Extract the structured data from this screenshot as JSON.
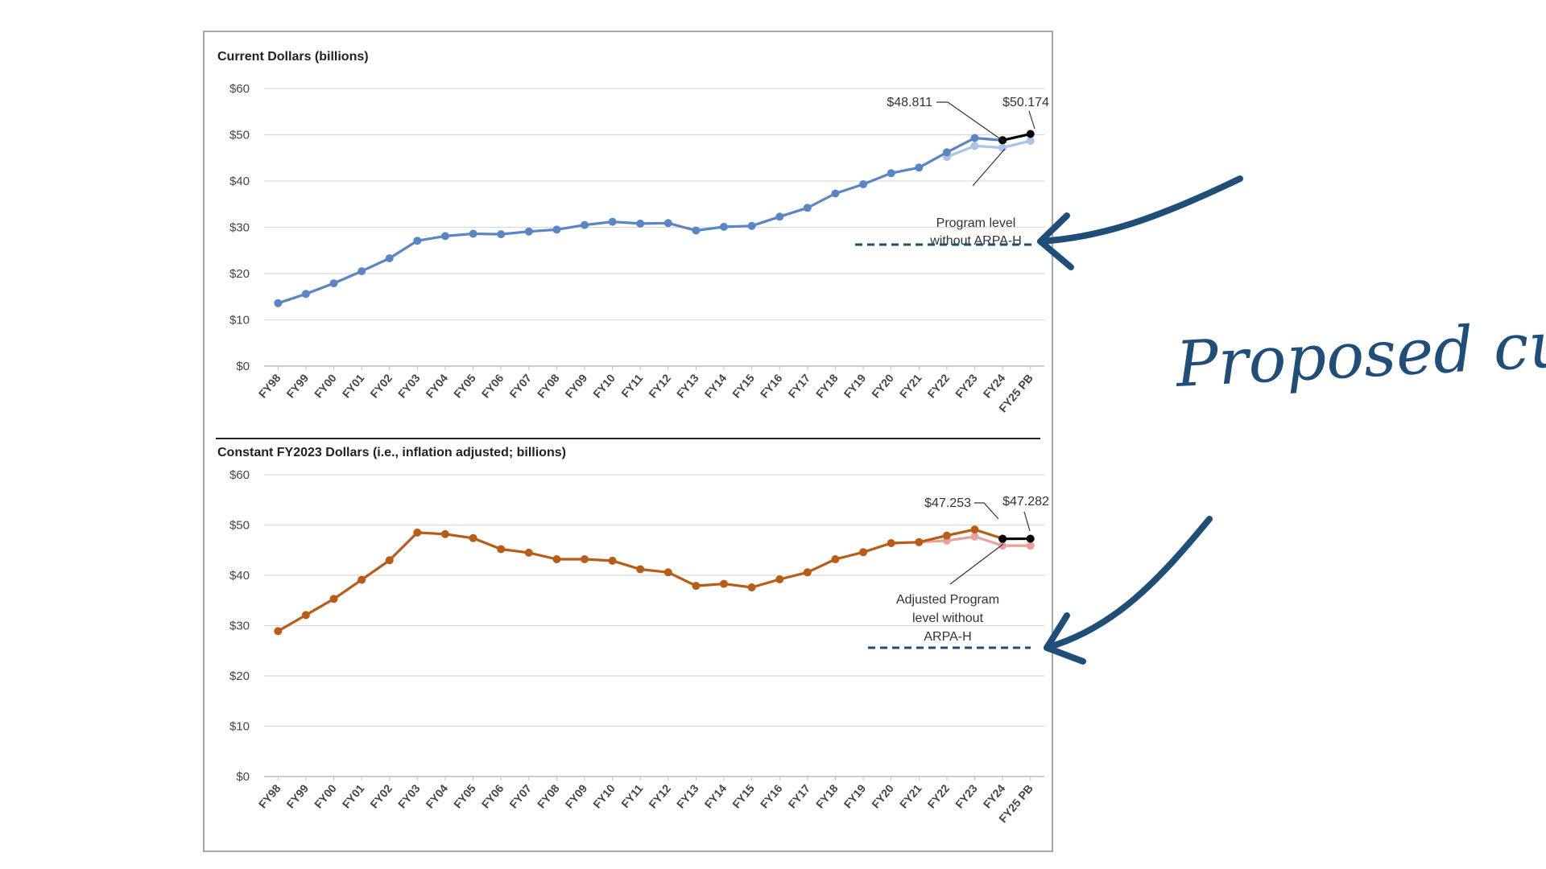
{
  "chart_data": [
    {
      "type": "line",
      "title": "Current Dollars (billions)",
      "yticks": [
        "$0",
        "$10",
        "$20",
        "$30",
        "$40",
        "$50",
        "$60"
      ],
      "ylim": [
        0,
        60
      ],
      "categories": [
        "FY98",
        "FY99",
        "FY00",
        "FY01",
        "FY02",
        "FY03",
        "FY04",
        "FY05",
        "FY06",
        "FY07",
        "FY08",
        "FY09",
        "FY10",
        "FY11",
        "FY12",
        "FY13",
        "FY14",
        "FY15",
        "FY16",
        "FY17",
        "FY18",
        "FY19",
        "FY20",
        "FY21",
        "FY22",
        "FY23",
        "FY24",
        "FY25 PB"
      ],
      "series": [
        {
          "color": "#5b86c5",
          "values": [
            13.6,
            15.6,
            17.9,
            20.5,
            23.3,
            27.1,
            28.1,
            28.6,
            28.5,
            29.1,
            29.5,
            30.5,
            31.2,
            30.8,
            30.9,
            29.3,
            30.1,
            30.3,
            32.3,
            34.2,
            37.3,
            39.3,
            41.7,
            42.9,
            46.2,
            49.3,
            48.8,
            null
          ]
        },
        {
          "color": "#a9c4e6",
          "values": [
            null,
            null,
            null,
            null,
            null,
            null,
            null,
            null,
            null,
            null,
            null,
            null,
            null,
            null,
            null,
            null,
            null,
            null,
            null,
            null,
            null,
            null,
            null,
            null,
            45.2,
            47.6,
            47.2,
            48.7
          ]
        },
        {
          "color": "#000000",
          "values": [
            null,
            null,
            null,
            null,
            null,
            null,
            null,
            null,
            null,
            null,
            null,
            null,
            null,
            null,
            null,
            null,
            null,
            null,
            null,
            null,
            null,
            null,
            null,
            null,
            null,
            null,
            48.811,
            50.174
          ]
        }
      ],
      "annotations": [
        "$48.811",
        "$50.174",
        "Program level",
        "without ARPA-H"
      ]
    },
    {
      "type": "line",
      "title": "Constant FY2023 Dollars (i.e., inflation adjusted; billions)",
      "yticks": [
        "$0",
        "$10",
        "$20",
        "$30",
        "$40",
        "$50",
        "$60"
      ],
      "ylim": [
        0,
        60
      ],
      "categories": [
        "FY98",
        "FY99",
        "FY00",
        "FY01",
        "FY02",
        "FY03",
        "FY04",
        "FY05",
        "FY06",
        "FY07",
        "FY08",
        "FY09",
        "FY10",
        "FY11",
        "FY12",
        "FY13",
        "FY14",
        "FY15",
        "FY16",
        "FY17",
        "FY18",
        "FY19",
        "FY20",
        "FY21",
        "FY22",
        "FY23",
        "FY24",
        "FY25 PB"
      ],
      "series": [
        {
          "color": "#b85c17",
          "values": [
            28.9,
            32.1,
            35.3,
            39.1,
            43.0,
            48.5,
            48.2,
            47.4,
            45.2,
            44.5,
            43.2,
            43.2,
            42.9,
            41.2,
            40.6,
            37.9,
            38.3,
            37.6,
            39.2,
            40.6,
            43.2,
            44.6,
            46.4,
            46.6,
            47.9,
            49.1,
            47.3,
            null
          ]
        },
        {
          "color": "#e8a09a",
          "values": [
            null,
            null,
            null,
            null,
            null,
            null,
            null,
            null,
            null,
            null,
            null,
            null,
            null,
            null,
            null,
            null,
            null,
            null,
            null,
            null,
            null,
            null,
            null,
            46.6,
            46.9,
            47.7,
            45.9,
            45.9
          ]
        },
        {
          "color": "#000000",
          "values": [
            null,
            null,
            null,
            null,
            null,
            null,
            null,
            null,
            null,
            null,
            null,
            null,
            null,
            null,
            null,
            null,
            null,
            null,
            null,
            null,
            null,
            null,
            null,
            null,
            null,
            null,
            47.253,
            47.282
          ]
        }
      ],
      "annotations": [
        "$47.253",
        "$47.282",
        "Adjusted Program",
        "level without",
        "ARPA-H"
      ]
    }
  ],
  "handwritten_note": "Proposed cuts",
  "colors": {
    "arrow": "#1f4e79",
    "frame": "#8c8c8c",
    "grid": "#d9d9d9"
  }
}
